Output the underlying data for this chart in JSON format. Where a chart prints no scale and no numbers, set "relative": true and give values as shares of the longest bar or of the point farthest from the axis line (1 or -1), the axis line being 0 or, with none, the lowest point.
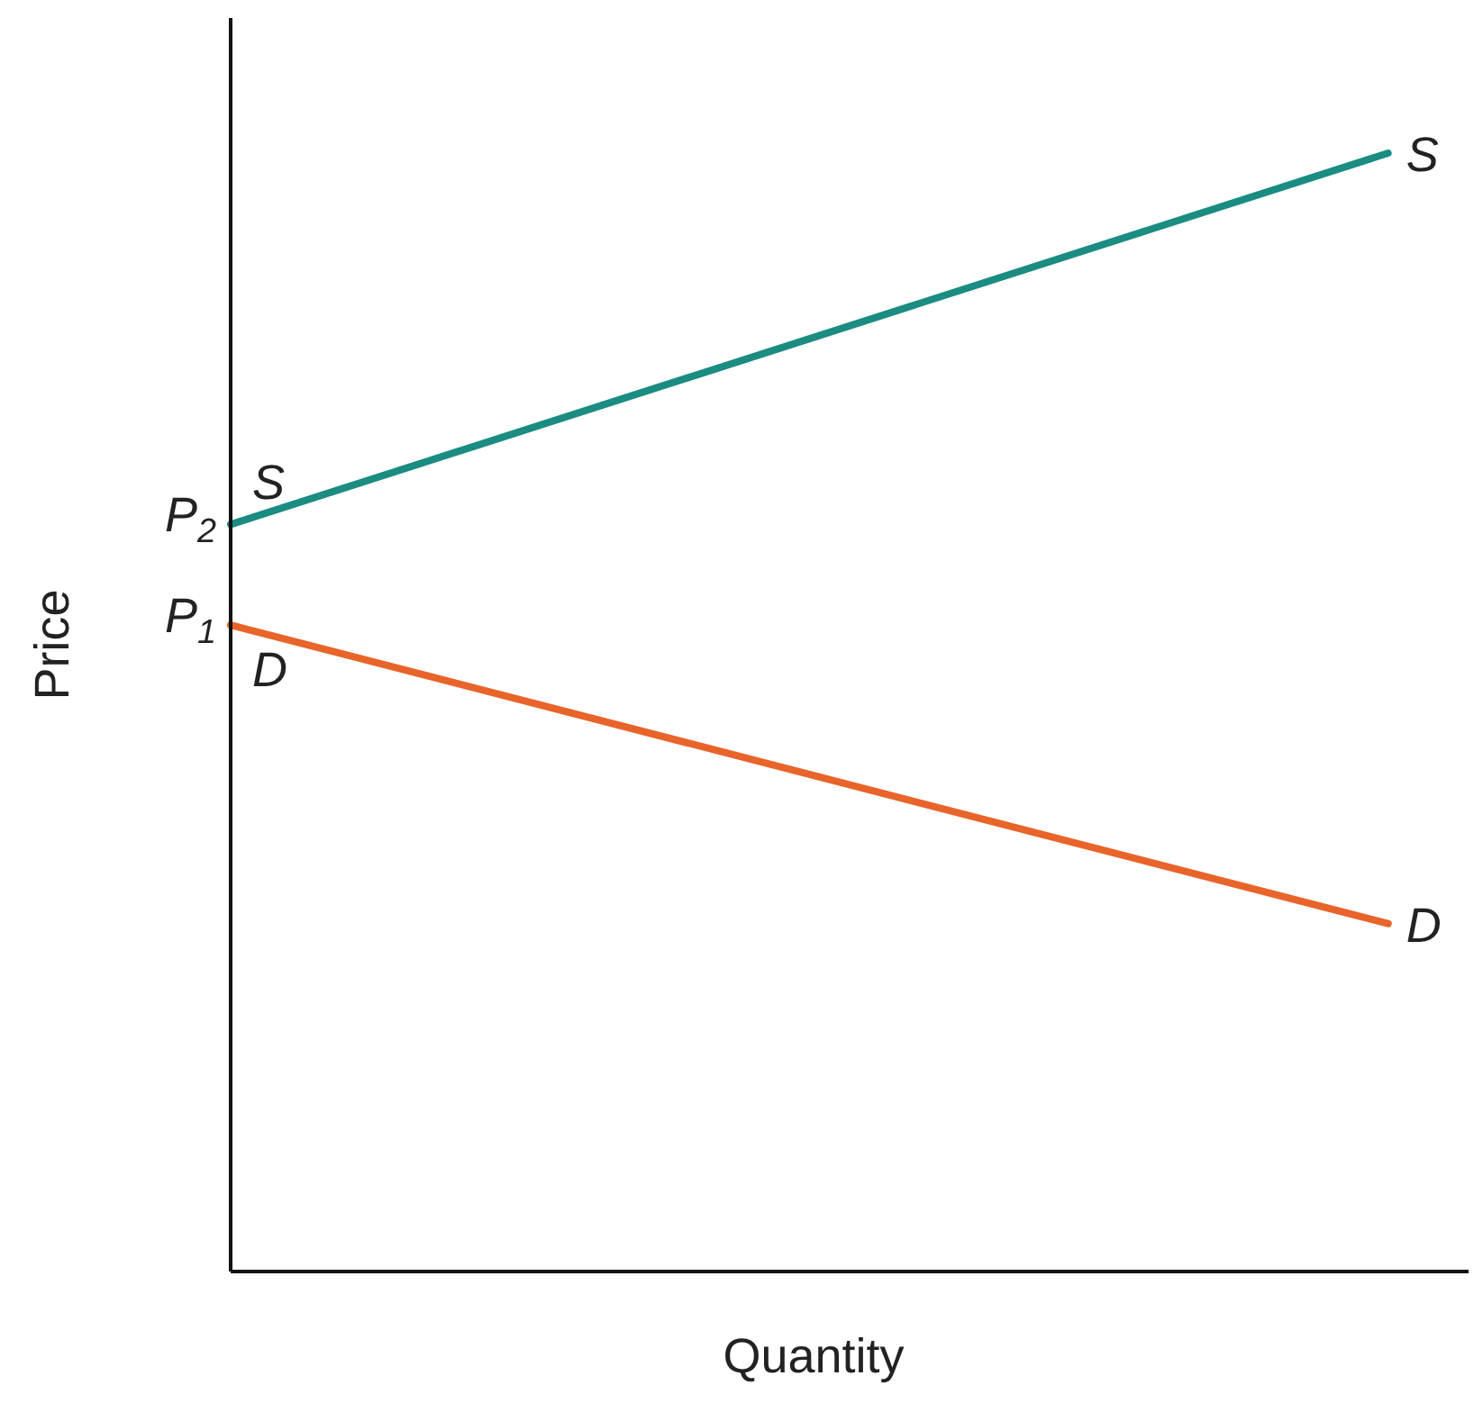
{
  "chart_data": {
    "type": "line",
    "xlabel": "Quantity",
    "ylabel": "Price",
    "categories": [
      null,
      null
    ],
    "relative": true,
    "series": [
      {
        "name": "S",
        "color": "#1b8c82",
        "values": [
          0.668,
          1
        ]
      },
      {
        "name": "D",
        "color": "#e8642a",
        "values": [
          0.578,
          0.311
        ]
      }
    ],
    "annotations": [
      "P$_{2}$",
      "P$_{1}$"
    ]
  }
}
